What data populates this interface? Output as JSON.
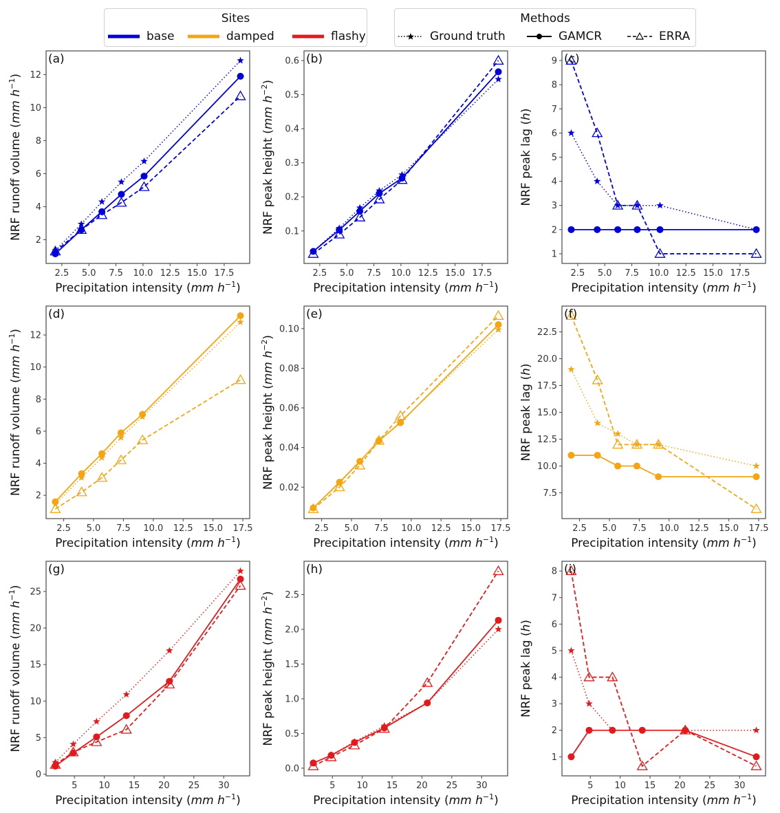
{
  "legends": {
    "sites": {
      "title": "Sites",
      "entries": [
        {
          "label": "base",
          "color": "#0000dd"
        },
        {
          "label": "damped",
          "color": "#f5a511"
        },
        {
          "label": "flashy",
          "color": "#e31a1c"
        }
      ]
    },
    "methods": {
      "title": "Methods",
      "entries": [
        {
          "label": "Ground truth",
          "linestyle": "dotted",
          "marker": "star"
        },
        {
          "label": "GAMCR",
          "linestyle": "solid",
          "marker": "circle"
        },
        {
          "label": "ERRA",
          "linestyle": "dashed",
          "marker": "triangle-open"
        }
      ]
    }
  },
  "chart_data": [
    {
      "panel": "(a)",
      "type": "line",
      "site": "base",
      "color": "#0000dd",
      "xlabel": "Precipitation intensity (mm h^-1)",
      "ylabel": "NRF runoff volume (mm h^-1)",
      "x": [
        1.9,
        4.3,
        6.2,
        8.0,
        10.1,
        19.0
      ],
      "xticks": [
        2.5,
        5.0,
        7.5,
        10.0,
        12.5,
        15.0,
        17.5
      ],
      "xtick_labels": [
        "2.5",
        "5.0",
        "7.5",
        "10.0",
        "12.5",
        "15.0",
        "17.5"
      ],
      "yticks": [
        2,
        4,
        6,
        8,
        10,
        12
      ],
      "ytick_labels": [
        "2",
        "4",
        "6",
        "8",
        "10",
        "12"
      ],
      "series": [
        {
          "name": "Ground truth",
          "values": [
            1.35,
            2.95,
            4.3,
            5.5,
            6.75,
            12.85
          ]
        },
        {
          "name": "GAMCR",
          "values": [
            1.15,
            2.6,
            3.7,
            4.75,
            5.85,
            11.9
          ]
        },
        {
          "name": "ERRA",
          "values": [
            1.3,
            2.6,
            3.5,
            4.25,
            5.2,
            10.7
          ]
        }
      ]
    },
    {
      "panel": "(b)",
      "type": "line",
      "site": "base",
      "color": "#0000dd",
      "xlabel": "Precipitation intensity (mm h^-1)",
      "ylabel": "NRF peak height (mm h^-2)",
      "x": [
        1.9,
        4.3,
        6.2,
        8.0,
        10.1,
        19.0
      ],
      "xticks": [
        2.5,
        5.0,
        7.5,
        10.0,
        12.5,
        15.0,
        17.5
      ],
      "xtick_labels": [
        "2.5",
        "5.0",
        "7.5",
        "10.0",
        "12.5",
        "15.0",
        "17.5"
      ],
      "yticks": [
        0.1,
        0.2,
        0.3,
        0.4,
        0.5,
        0.6
      ],
      "ytick_labels": [
        "0.1",
        "0.2",
        "0.3",
        "0.4",
        "0.5",
        "0.6"
      ],
      "series": [
        {
          "name": "Ground truth",
          "values": [
            0.04,
            0.108,
            0.168,
            0.218,
            0.265,
            0.545
          ]
        },
        {
          "name": "GAMCR",
          "values": [
            0.04,
            0.103,
            0.158,
            0.21,
            0.255,
            0.567
          ]
        },
        {
          "name": "ERRA",
          "values": [
            0.033,
            0.09,
            0.14,
            0.193,
            0.25,
            0.6
          ]
        }
      ]
    },
    {
      "panel": "(c)",
      "type": "line",
      "site": "base",
      "color": "#0000dd",
      "xlabel": "Precipitation intensity (mm h^-1)",
      "ylabel": "NRF peak lag (h)",
      "x": [
        1.9,
        4.3,
        6.2,
        8.0,
        10.1,
        19.0
      ],
      "xticks": [
        2.5,
        5.0,
        7.5,
        10.0,
        12.5,
        15.0,
        17.5
      ],
      "xtick_labels": [
        "2.5",
        "5.0",
        "7.5",
        "10.0",
        "12.5",
        "15.0",
        "17.5"
      ],
      "yticks": [
        1,
        2,
        3,
        4,
        5,
        6,
        7,
        8,
        9
      ],
      "ytick_labels": [
        "1",
        "2",
        "3",
        "4",
        "5",
        "6",
        "7",
        "8",
        "9"
      ],
      "series": [
        {
          "name": "Ground truth",
          "values": [
            6,
            4,
            3,
            3,
            3,
            2
          ]
        },
        {
          "name": "GAMCR",
          "values": [
            2,
            2,
            2,
            2,
            2,
            2
          ]
        },
        {
          "name": "ERRA",
          "values": [
            9,
            6,
            3,
            3,
            1,
            1
          ]
        }
      ]
    },
    {
      "panel": "(d)",
      "type": "line",
      "site": "damped",
      "color": "#f5a511",
      "xlabel": "Precipitation intensity (mm h^-1)",
      "ylabel": "NRF runoff volume (mm h^-1)",
      "x": [
        1.8,
        4.0,
        5.7,
        7.3,
        9.1,
        17.3
      ],
      "xticks": [
        2.5,
        5.0,
        7.5,
        10.0,
        12.5,
        15.0,
        17.5
      ],
      "xtick_labels": [
        "2.5",
        "5.0",
        "7.5",
        "10.0",
        "12.5",
        "15.0",
        "17.5"
      ],
      "yticks": [
        2,
        4,
        6,
        8,
        10,
        12
      ],
      "ytick_labels": [
        "2",
        "4",
        "6",
        "8",
        "10",
        "12"
      ],
      "series": [
        {
          "name": "Ground truth",
          "values": [
            1.45,
            3.1,
            4.35,
            5.6,
            6.9,
            12.8
          ]
        },
        {
          "name": "GAMCR",
          "values": [
            1.6,
            3.35,
            4.6,
            5.9,
            7.05,
            13.2
          ]
        },
        {
          "name": "ERRA",
          "values": [
            1.15,
            2.2,
            3.1,
            4.2,
            5.45,
            9.2
          ]
        }
      ]
    },
    {
      "panel": "(e)",
      "type": "line",
      "site": "damped",
      "color": "#f5a511",
      "xlabel": "Precipitation intensity (mm h^-1)",
      "ylabel": "NRF peak height (mm h^-2)",
      "x": [
        1.8,
        4.0,
        5.7,
        7.3,
        9.1,
        17.3
      ],
      "xticks": [
        2.5,
        5.0,
        7.5,
        10.0,
        12.5,
        15.0,
        17.5
      ],
      "xtick_labels": [
        "2.5",
        "5.0",
        "7.5",
        "10.0",
        "12.5",
        "15.0",
        "17.5"
      ],
      "yticks": [
        0.02,
        0.04,
        0.06,
        0.08,
        0.1
      ],
      "ytick_labels": [
        "0.02",
        "0.04",
        "0.06",
        "0.08",
        "0.10"
      ],
      "series": [
        {
          "name": "Ground truth",
          "values": [
            0.0095,
            0.022,
            0.033,
            0.043,
            0.053,
            0.0995
          ]
        },
        {
          "name": "GAMCR",
          "values": [
            0.0095,
            0.0225,
            0.033,
            0.0435,
            0.0525,
            0.102
          ]
        },
        {
          "name": "ERRA",
          "values": [
            0.009,
            0.02,
            0.031,
            0.0435,
            0.056,
            0.1065
          ]
        }
      ]
    },
    {
      "panel": "(f)",
      "type": "line",
      "site": "damped",
      "color": "#f5a511",
      "xlabel": "Precipitation intensity (mm h^-1)",
      "ylabel": "NRF peak lag (h)",
      "x": [
        1.8,
        4.0,
        5.7,
        7.3,
        9.1,
        17.3
      ],
      "xticks": [
        2.5,
        5.0,
        7.5,
        10.0,
        12.5,
        15.0,
        17.5
      ],
      "xtick_labels": [
        "2.5",
        "5.0",
        "7.5",
        "10.0",
        "12.5",
        "15.0",
        "17.5"
      ],
      "yticks": [
        7.5,
        10.0,
        12.5,
        15.0,
        17.5,
        20.0,
        22.5
      ],
      "ytick_labels": [
        "7.5",
        "10.0",
        "12.5",
        "15.0",
        "17.5",
        "20.0",
        "22.5"
      ],
      "series": [
        {
          "name": "Ground truth",
          "values": [
            19,
            14,
            13,
            12,
            12,
            10
          ]
        },
        {
          "name": "GAMCR",
          "values": [
            11,
            11,
            10,
            10,
            9,
            9
          ]
        },
        {
          "name": "ERRA",
          "values": [
            24,
            18,
            12,
            12,
            12,
            6
          ]
        }
      ]
    },
    {
      "panel": "(g)",
      "type": "line",
      "site": "flashy",
      "color": "#e31a1c",
      "xlabel": "Precipitation intensity (mm h^-1)",
      "ylabel": "NRF runoff volume (mm h^-1)",
      "x": [
        1.8,
        4.8,
        8.7,
        13.7,
        20.9,
        32.8
      ],
      "xticks": [
        5,
        10,
        15,
        20,
        25,
        30
      ],
      "xtick_labels": [
        "5",
        "10",
        "15",
        "20",
        "25",
        "30"
      ],
      "yticks": [
        0,
        5,
        10,
        15,
        20,
        25
      ],
      "ytick_labels": [
        "0",
        "5",
        "10",
        "15",
        "20",
        "25"
      ],
      "series": [
        {
          "name": "Ground truth",
          "values": [
            1.6,
            4.1,
            7.2,
            10.9,
            16.9,
            27.8
          ]
        },
        {
          "name": "GAMCR",
          "values": [
            1.1,
            2.9,
            5.1,
            8.0,
            12.7,
            26.7
          ]
        },
        {
          "name": "ERRA",
          "values": [
            1.3,
            3.0,
            4.4,
            6.1,
            12.3,
            25.8
          ]
        }
      ]
    },
    {
      "panel": "(h)",
      "type": "line",
      "site": "flashy",
      "color": "#e31a1c",
      "xlabel": "Precipitation intensity (mm h^-1)",
      "ylabel": "NRF peak height (mm h^-2)",
      "x": [
        1.8,
        4.8,
        8.7,
        13.7,
        20.9,
        32.8
      ],
      "xticks": [
        5,
        10,
        15,
        20,
        25,
        30
      ],
      "xtick_labels": [
        "5",
        "10",
        "15",
        "20",
        "25",
        "30"
      ],
      "yticks": [
        0.0,
        0.5,
        1.0,
        1.5,
        2.0,
        2.5
      ],
      "ytick_labels": [
        "0.0",
        "0.5",
        "1.0",
        "1.5",
        "2.0",
        "2.5"
      ],
      "series": [
        {
          "name": "Ground truth",
          "values": [
            0.07,
            0.19,
            0.38,
            0.61,
            0.94,
            2.0
          ]
        },
        {
          "name": "GAMCR",
          "values": [
            0.075,
            0.185,
            0.37,
            0.58,
            0.94,
            2.13
          ]
        },
        {
          "name": "ERRA",
          "values": [
            0.03,
            0.16,
            0.33,
            0.57,
            1.23,
            2.84
          ]
        }
      ]
    },
    {
      "panel": "(i)",
      "type": "line",
      "site": "flashy",
      "color": "#e31a1c",
      "xlabel": "Precipitation intensity (mm h^-1)",
      "ylabel": "NRF peak lag (h)",
      "x": [
        1.8,
        4.8,
        8.7,
        13.7,
        20.9,
        32.8
      ],
      "xticks": [
        5,
        10,
        15,
        20,
        25,
        30
      ],
      "xtick_labels": [
        "5",
        "10",
        "15",
        "20",
        "25",
        "30"
      ],
      "yticks": [
        1,
        2,
        3,
        4,
        5,
        6,
        7,
        8
      ],
      "ytick_labels": [
        "1",
        "2",
        "3",
        "4",
        "5",
        "6",
        "7",
        "8"
      ],
      "series": [
        {
          "name": "Ground truth",
          "values": [
            5,
            3,
            2,
            2,
            2,
            2
          ]
        },
        {
          "name": "GAMCR",
          "values": [
            1,
            2,
            2,
            2,
            2,
            1
          ]
        },
        {
          "name": "ERRA",
          "values": [
            8,
            4,
            4,
            0.65,
            2,
            0.65
          ]
        }
      ]
    }
  ]
}
